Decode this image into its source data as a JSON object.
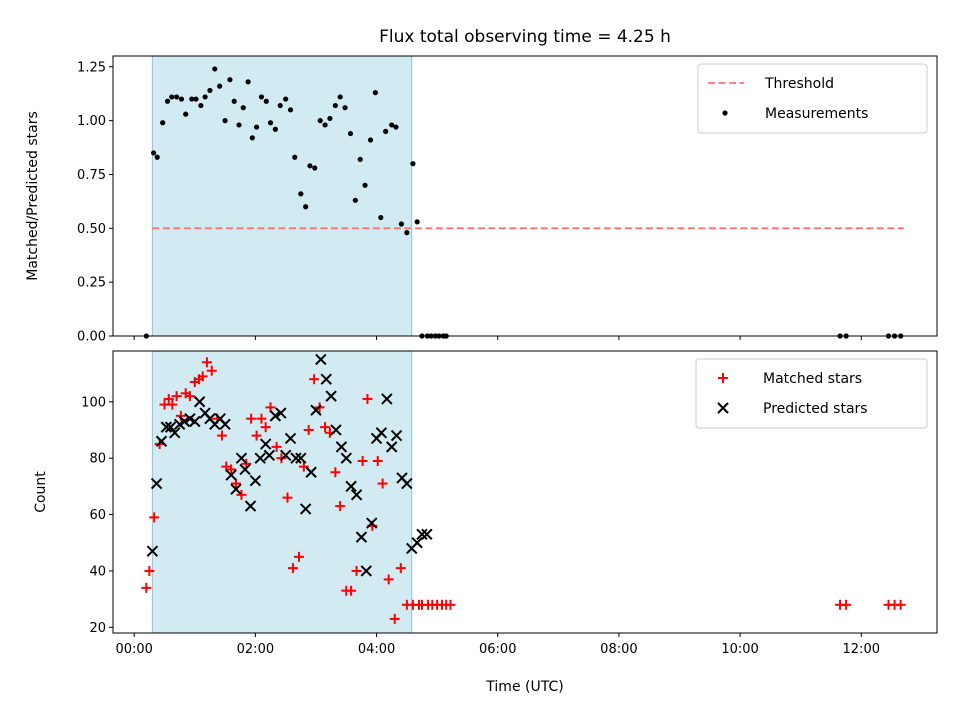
{
  "chart_data": [
    {
      "type": "scatter",
      "title": "Flux total observing time = 4.25 h",
      "xlabel": "",
      "ylabel": "Matched/Predicted stars",
      "xlim": [
        -0.35,
        13.25
      ],
      "ylim": [
        0,
        1.3
      ],
      "yticks": [
        0.0,
        0.25,
        0.5,
        0.75,
        1.0,
        1.25
      ],
      "ytick_labels": [
        "0.00",
        "0.25",
        "0.50",
        "0.75",
        "1.00",
        "1.25"
      ],
      "xticks": [
        0,
        2,
        4,
        6,
        8,
        10,
        12
      ],
      "legend_position": "top-right",
      "observing_span": {
        "x": [
          0.3,
          4.58
        ],
        "color": "#add8e6"
      },
      "threshold": {
        "name": "Threshold",
        "y": 0.5,
        "x": [
          0.3,
          12.7
        ],
        "color": "#ff7070"
      },
      "series": [
        {
          "name": "Measurements",
          "marker": "dot",
          "color": "#000000",
          "x": [
            0.2,
            0.32,
            0.38,
            0.47,
            0.55,
            0.62,
            0.7,
            0.78,
            0.85,
            0.95,
            1.02,
            1.1,
            1.17,
            1.25,
            1.33,
            1.41,
            1.5,
            1.58,
            1.65,
            1.73,
            1.8,
            1.88,
            1.95,
            2.02,
            2.1,
            2.18,
            2.25,
            2.33,
            2.41,
            2.5,
            2.58,
            2.65,
            2.75,
            2.83,
            2.9,
            2.98,
            3.07,
            3.15,
            3.23,
            3.32,
            3.4,
            3.48,
            3.57,
            3.65,
            3.73,
            3.81,
            3.9,
            3.98,
            4.07,
            4.15,
            4.25,
            4.32,
            4.41,
            4.5,
            4.6,
            4.67,
            4.75,
            4.84,
            4.9,
            4.97,
            5.03,
            5.1,
            5.15,
            11.65,
            11.75,
            12.45,
            12.55,
            12.65
          ],
          "y": [
            0.0,
            0.85,
            0.83,
            0.99,
            1.09,
            1.11,
            1.11,
            1.1,
            1.03,
            1.1,
            1.1,
            1.07,
            1.11,
            1.14,
            1.24,
            1.16,
            1.0,
            1.19,
            1.09,
            0.98,
            1.06,
            1.18,
            0.92,
            0.97,
            1.11,
            1.09,
            0.99,
            0.96,
            1.07,
            1.1,
            1.05,
            0.83,
            0.66,
            0.6,
            0.79,
            0.78,
            1.0,
            0.98,
            1.01,
            1.07,
            1.11,
            1.06,
            0.94,
            0.63,
            0.82,
            0.7,
            0.91,
            1.13,
            0.55,
            0.95,
            0.98,
            0.97,
            0.52,
            0.48,
            0.8,
            0.53,
            0.0,
            0.0,
            0.0,
            0.0,
            0.0,
            0.0,
            0.0,
            0.0,
            0.0,
            0.0,
            0.0,
            0.0
          ]
        }
      ]
    },
    {
      "type": "scatter",
      "title": "",
      "xlabel": "Time (UTC)",
      "ylabel": "Count",
      "xlim": [
        -0.35,
        13.25
      ],
      "ylim": [
        18,
        118
      ],
      "yticks": [
        20,
        40,
        60,
        80,
        100
      ],
      "ytick_labels": [
        "20",
        "40",
        "60",
        "80",
        "100"
      ],
      "xticks": [
        0,
        2,
        4,
        6,
        8,
        10,
        12
      ],
      "xtick_labels": [
        "00:00",
        "02:00",
        "04:00",
        "06:00",
        "08:00",
        "10:00",
        "12:00"
      ],
      "legend_position": "top-right",
      "observing_span": {
        "x": [
          0.3,
          4.58
        ],
        "color": "#add8e6"
      },
      "series": [
        {
          "name": "Matched stars",
          "marker": "plus",
          "color": "#ff0000",
          "x": [
            0.2,
            0.25,
            0.33,
            0.42,
            0.5,
            0.57,
            0.63,
            0.7,
            0.77,
            0.85,
            0.92,
            1.0,
            1.07,
            1.13,
            1.2,
            1.28,
            1.37,
            1.45,
            1.52,
            1.6,
            1.68,
            1.77,
            1.85,
            1.93,
            2.02,
            2.1,
            2.17,
            2.25,
            2.35,
            2.43,
            2.53,
            2.62,
            2.72,
            2.8,
            2.88,
            2.97,
            3.06,
            3.15,
            3.23,
            3.32,
            3.4,
            3.5,
            3.58,
            3.67,
            3.77,
            3.85,
            3.93,
            4.02,
            4.1,
            4.2,
            4.3,
            4.4,
            4.5,
            4.6,
            4.7,
            4.75,
            4.85,
            4.92,
            5.0,
            5.08,
            5.15,
            5.22,
            11.65,
            11.75,
            12.45,
            12.55,
            12.65
          ],
          "y": [
            34,
            40,
            59,
            85,
            99,
            101,
            99,
            102,
            95,
            103,
            102,
            107,
            108,
            109,
            114,
            111,
            94,
            88,
            77,
            76,
            71,
            67,
            78,
            94,
            88,
            94,
            91,
            98,
            84,
            80,
            66,
            41,
            45,
            77,
            90,
            108,
            98,
            91,
            89,
            75,
            63,
            33,
            33,
            40,
            79,
            101,
            56,
            79,
            71,
            37,
            23,
            41,
            28,
            28,
            28,
            28,
            28,
            28,
            28,
            28,
            28,
            28,
            28,
            28,
            28,
            28,
            28
          ],
          "note_x_offset": 0
        },
        {
          "name": "Predicted stars",
          "marker": "x",
          "color": "#000000",
          "x": [
            0.3,
            0.37,
            0.45,
            0.53,
            0.6,
            0.67,
            0.75,
            0.83,
            0.92,
            1.0,
            1.08,
            1.17,
            1.25,
            1.33,
            1.42,
            1.5,
            1.6,
            1.68,
            1.77,
            1.83,
            1.92,
            2.0,
            2.08,
            2.17,
            2.23,
            2.33,
            2.42,
            2.5,
            2.58,
            2.67,
            2.75,
            2.83,
            2.92,
            3.0,
            3.08,
            3.17,
            3.25,
            3.33,
            3.42,
            3.5,
            3.58,
            3.67,
            3.75,
            3.83,
            3.92,
            4.0,
            4.08,
            4.17,
            4.25,
            4.33,
            4.42,
            4.5,
            4.58,
            4.67,
            4.75,
            4.83
          ],
          "y": [
            47,
            71,
            86,
            91,
            91,
            89,
            92,
            93,
            94,
            93,
            100,
            96,
            94,
            92,
            94,
            92,
            74,
            69,
            80,
            76,
            63,
            72,
            80,
            85,
            81,
            95,
            96,
            81,
            87,
            80,
            80,
            62,
            75,
            97,
            115,
            108,
            102,
            90,
            84,
            80,
            70,
            67,
            52,
            40,
            57,
            87,
            89,
            101,
            84,
            88,
            73,
            71,
            48,
            50,
            53,
            53
          ]
        }
      ]
    }
  ]
}
